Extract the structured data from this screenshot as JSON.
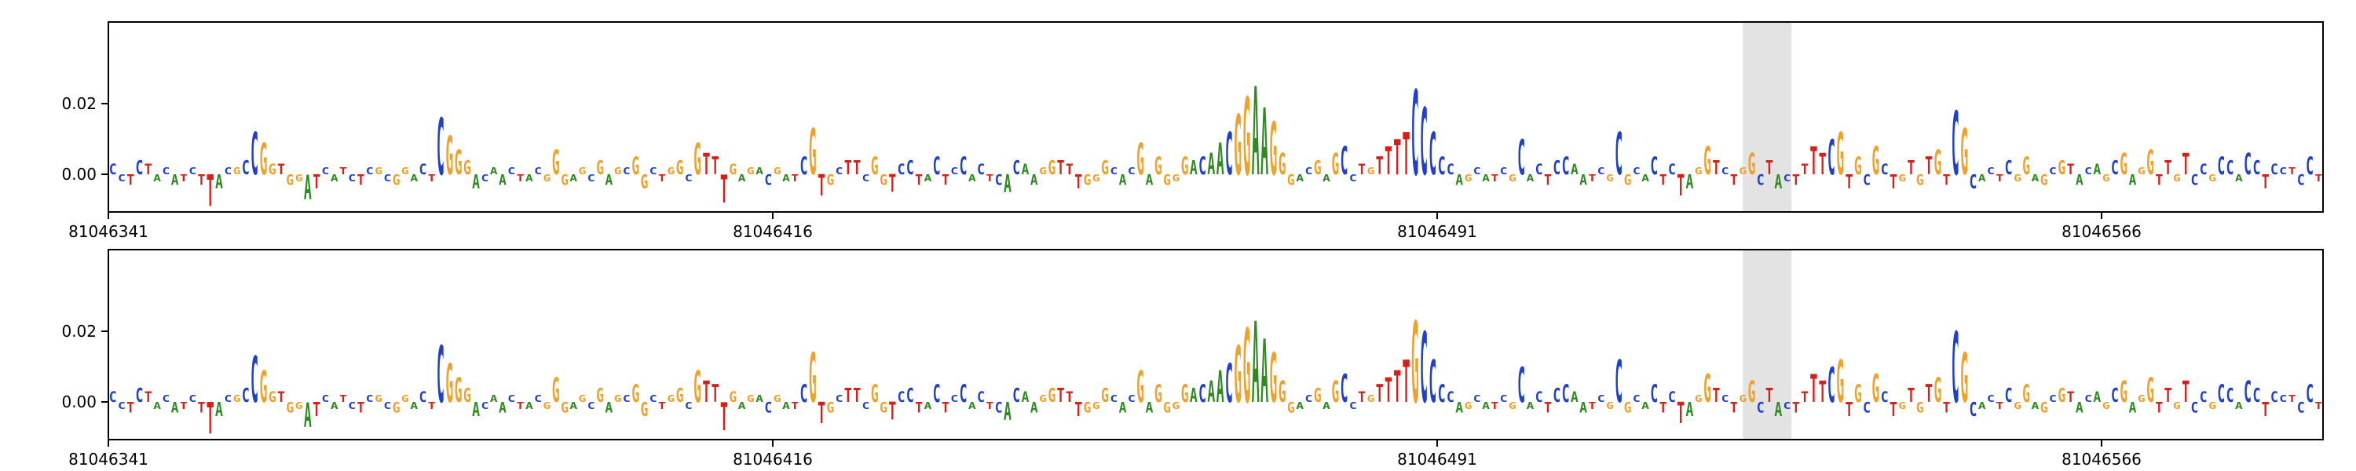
{
  "figure": {
    "background": "#ffffff",
    "type_hint": "genomic attribution sequence-logo tracks, two stacked panels"
  },
  "chart_data": {
    "type": "sequence_logo",
    "x_axis": {
      "start_coordinate": 81046341,
      "length_bp": 250,
      "tick_positions_bp": [
        0,
        75,
        150,
        225
      ],
      "tick_labels": [
        "81046341",
        "81046416",
        "81046491",
        "81046566"
      ]
    },
    "y_axis": {
      "tick_values": [
        0.0,
        0.02
      ],
      "tick_labels": [
        "0.00",
        "0.02"
      ],
      "ylim": [
        -0.0107,
        0.0431
      ]
    },
    "highlight_region": {
      "start_bp": 184.5,
      "end_bp": 190,
      "color": "#e3e3e3"
    },
    "colors": {
      "A": "#2e8b22",
      "C": "#2040cc",
      "G": "#f0a12c",
      "T": "#d91e18"
    },
    "panels": [
      {
        "name": "track-1",
        "letters": [
          [
            "C",
            0.003
          ],
          [
            "C",
            -0.002
          ],
          [
            "T",
            -0.003
          ],
          [
            "C",
            0.004
          ],
          [
            "T",
            0.003
          ],
          [
            "A",
            -0.002
          ],
          [
            "C",
            0.002
          ],
          [
            "A",
            -0.003
          ],
          [
            "T",
            -0.002
          ],
          [
            "C",
            0.002
          ],
          [
            "T",
            -0.003
          ],
          [
            "T",
            -0.009
          ],
          [
            "A",
            -0.004
          ],
          [
            "C",
            0.002
          ],
          [
            "G",
            0.002
          ],
          [
            "C",
            0.004
          ],
          [
            "C",
            0.012
          ],
          [
            "G",
            0.009
          ],
          [
            "G",
            0.003
          ],
          [
            "T",
            0.003
          ],
          [
            "G",
            -0.003
          ],
          [
            "G",
            -0.002
          ],
          [
            "A",
            -0.007
          ],
          [
            "T",
            -0.004
          ],
          [
            "C",
            0.002
          ],
          [
            "A",
            -0.002
          ],
          [
            "T",
            0.002
          ],
          [
            "C",
            -0.002
          ],
          [
            "T",
            -0.003
          ],
          [
            "C",
            0.002
          ],
          [
            "G",
            0.002
          ],
          [
            "C",
            -0.002
          ],
          [
            "G",
            -0.003
          ],
          [
            "G",
            0.002
          ],
          [
            "A",
            -0.002
          ],
          [
            "C",
            0.003
          ],
          [
            "T",
            -0.002
          ],
          [
            "C",
            0.016
          ],
          [
            "G",
            0.011
          ],
          [
            "G",
            0.007
          ],
          [
            "G",
            0.004
          ],
          [
            "A",
            -0.004
          ],
          [
            "C",
            -0.002
          ],
          [
            "A",
            0.002
          ],
          [
            "A",
            -0.003
          ],
          [
            "C",
            0.002
          ],
          [
            "T",
            -0.002
          ],
          [
            "A",
            -0.002
          ],
          [
            "C",
            0.002
          ],
          [
            "G",
            -0.002
          ],
          [
            "G",
            0.007
          ],
          [
            "G",
            -0.003
          ],
          [
            "A",
            -0.002
          ],
          [
            "G",
            0.002
          ],
          [
            "C",
            -0.002
          ],
          [
            "G",
            0.004
          ],
          [
            "A",
            -0.003
          ],
          [
            "G",
            0.002
          ],
          [
            "C",
            0.002
          ],
          [
            "G",
            0.005
          ],
          [
            "G",
            -0.004
          ],
          [
            "C",
            0.002
          ],
          [
            "T",
            -0.002
          ],
          [
            "G",
            0.002
          ],
          [
            "G",
            0.004
          ],
          [
            "C",
            -0.002
          ],
          [
            "G",
            0.009
          ],
          [
            "T",
            0.006
          ],
          [
            "T",
            0.005
          ],
          [
            "T",
            -0.008
          ],
          [
            "G",
            0.003
          ],
          [
            "A",
            -0.002
          ],
          [
            "G",
            0.002
          ],
          [
            "A",
            0.002
          ],
          [
            "C",
            -0.003
          ],
          [
            "G",
            0.002
          ],
          [
            "A",
            -0.002
          ],
          [
            "T",
            -0.002
          ],
          [
            "C",
            0.005
          ],
          [
            "G",
            0.013
          ],
          [
            "T",
            -0.006
          ],
          [
            "G",
            -0.003
          ],
          [
            "C",
            0.002
          ],
          [
            "T",
            0.004
          ],
          [
            "T",
            0.004
          ],
          [
            "C",
            -0.002
          ],
          [
            "G",
            0.005
          ],
          [
            "G",
            -0.003
          ],
          [
            "T",
            -0.005
          ],
          [
            "C",
            0.003
          ],
          [
            "C",
            0.004
          ],
          [
            "T",
            -0.003
          ],
          [
            "A",
            -0.002
          ],
          [
            "C",
            0.005
          ],
          [
            "T",
            -0.003
          ],
          [
            "C",
            0.002
          ],
          [
            "C",
            0.005
          ],
          [
            "A",
            -0.002
          ],
          [
            "C",
            0.003
          ],
          [
            "T",
            -0.002
          ],
          [
            "C",
            -0.003
          ],
          [
            "A",
            -0.005
          ],
          [
            "C",
            0.004
          ],
          [
            "A",
            0.003
          ],
          [
            "A",
            -0.003
          ],
          [
            "G",
            0.002
          ],
          [
            "G",
            0.004
          ],
          [
            "T",
            0.004
          ],
          [
            "T",
            0.003
          ],
          [
            "T",
            -0.004
          ],
          [
            "G",
            -0.003
          ],
          [
            "G",
            -0.002
          ],
          [
            "G",
            0.004
          ],
          [
            "C",
            0.002
          ],
          [
            "A",
            -0.003
          ],
          [
            "C",
            0.002
          ],
          [
            "G",
            0.009
          ],
          [
            "A",
            -0.003
          ],
          [
            "G",
            0.005
          ],
          [
            "G",
            -0.003
          ],
          [
            "G",
            -0.002
          ],
          [
            "G",
            0.005
          ],
          [
            "A",
            0.004
          ],
          [
            "C",
            0.005
          ],
          [
            "A",
            0.006
          ],
          [
            "A",
            0.009
          ],
          [
            "C",
            0.012
          ],
          [
            "G",
            0.017
          ],
          [
            "G",
            0.022
          ],
          [
            "A",
            0.025
          ],
          [
            "A",
            0.019
          ],
          [
            "G",
            0.015
          ],
          [
            "G",
            0.006
          ],
          [
            "G",
            -0.003
          ],
          [
            "A",
            -0.002
          ],
          [
            "C",
            0.002
          ],
          [
            "G",
            0.004
          ],
          [
            "A",
            -0.002
          ],
          [
            "G",
            0.006
          ],
          [
            "C",
            0.008
          ],
          [
            "C",
            -0.002
          ],
          [
            "T",
            0.003
          ],
          [
            "G",
            0.002
          ],
          [
            "T",
            0.005
          ],
          [
            "T",
            0.008
          ],
          [
            "T",
            0.01
          ],
          [
            "T",
            0.012
          ],
          [
            "C",
            0.024
          ],
          [
            "C",
            0.019
          ],
          [
            "C",
            0.012
          ],
          [
            "C",
            0.005
          ],
          [
            "C",
            0.003
          ],
          [
            "A",
            -0.003
          ],
          [
            "G",
            -0.002
          ],
          [
            "C",
            0.002
          ],
          [
            "A",
            -0.002
          ],
          [
            "T",
            -0.002
          ],
          [
            "C",
            0.002
          ],
          [
            "G",
            -0.002
          ],
          [
            "C",
            0.01
          ],
          [
            "A",
            -0.002
          ],
          [
            "C",
            0.003
          ],
          [
            "T",
            -0.003
          ],
          [
            "C",
            0.004
          ],
          [
            "C",
            0.005
          ],
          [
            "A",
            0.003
          ],
          [
            "A",
            -0.003
          ],
          [
            "T",
            -0.002
          ],
          [
            "C",
            0.002
          ],
          [
            "G",
            -0.002
          ],
          [
            "C",
            0.012
          ],
          [
            "G",
            -0.003
          ],
          [
            "C",
            0.002
          ],
          [
            "A",
            -0.002
          ],
          [
            "C",
            0.005
          ],
          [
            "T",
            -0.003
          ],
          [
            "C",
            0.003
          ],
          [
            "T",
            -0.006
          ],
          [
            "A",
            -0.004
          ],
          [
            "G",
            0.002
          ],
          [
            "G",
            0.008
          ],
          [
            "T",
            0.004
          ],
          [
            "C",
            0.002
          ],
          [
            "T",
            -0.003
          ],
          [
            "G",
            0.002
          ],
          [
            "G",
            0.006
          ],
          [
            "C",
            -0.003
          ],
          [
            "T",
            0.004
          ],
          [
            "A",
            -0.004
          ],
          [
            "C",
            -0.002
          ],
          [
            "T",
            -0.003
          ],
          [
            "T",
            0.003
          ],
          [
            "T",
            0.008
          ],
          [
            "T",
            0.006
          ],
          [
            "C",
            0.01
          ],
          [
            "G",
            0.012
          ],
          [
            "T",
            -0.004
          ],
          [
            "G",
            0.005
          ],
          [
            "C",
            -0.003
          ],
          [
            "G",
            0.008
          ],
          [
            "C",
            0.003
          ],
          [
            "T",
            -0.004
          ],
          [
            "G",
            -0.002
          ],
          [
            "T",
            0.004
          ],
          [
            "G",
            -0.003
          ],
          [
            "T",
            0.005
          ],
          [
            "G",
            0.007
          ],
          [
            "T",
            -0.003
          ],
          [
            "C",
            0.018
          ],
          [
            "G",
            0.013
          ],
          [
            "C",
            -0.004
          ],
          [
            "A",
            -0.002
          ],
          [
            "C",
            0.002
          ],
          [
            "T",
            -0.002
          ],
          [
            "C",
            0.004
          ],
          [
            "G",
            -0.002
          ],
          [
            "G",
            0.005
          ],
          [
            "A",
            -0.002
          ],
          [
            "G",
            -0.003
          ],
          [
            "C",
            0.002
          ],
          [
            "G",
            0.004
          ],
          [
            "T",
            0.003
          ],
          [
            "A",
            -0.003
          ],
          [
            "C",
            0.002
          ],
          [
            "A",
            0.003
          ],
          [
            "G",
            -0.002
          ],
          [
            "C",
            0.004
          ],
          [
            "G",
            0.006
          ],
          [
            "A",
            -0.003
          ],
          [
            "G",
            0.002
          ],
          [
            "G",
            0.007
          ],
          [
            "T",
            -0.003
          ],
          [
            "T",
            0.004
          ],
          [
            "G",
            -0.002
          ],
          [
            "T",
            0.006
          ],
          [
            "C",
            -0.003
          ],
          [
            "C",
            0.003
          ],
          [
            "G",
            -0.002
          ],
          [
            "C",
            0.005
          ],
          [
            "C",
            0.004
          ],
          [
            "A",
            -0.002
          ],
          [
            "C",
            0.006
          ],
          [
            "C",
            0.004
          ],
          [
            "T",
            -0.004
          ],
          [
            "C",
            0.003
          ],
          [
            "C",
            0.002
          ],
          [
            "T",
            0.002
          ],
          [
            "C",
            -0.003
          ],
          [
            "C",
            0.005
          ],
          [
            "T",
            -0.002
          ]
        ]
      },
      {
        "name": "track-2",
        "inherits": "track-1",
        "overrides": {
          "16": [
            "C",
            0.013
          ],
          "79": [
            "G",
            0.014
          ],
          "126": [
            "C",
            0.011
          ],
          "127": [
            "G",
            0.016
          ],
          "128": [
            "G",
            0.021
          ],
          "129": [
            "A",
            0.023
          ],
          "130": [
            "A",
            0.018
          ],
          "131": [
            "G",
            0.014
          ],
          "144": [
            "T",
            0.007
          ],
          "145": [
            "T",
            0.009
          ],
          "146": [
            "T",
            0.012
          ],
          "147": [
            "G",
            0.023
          ],
          "148": [
            "C",
            0.02
          ],
          "149": [
            "C",
            0.012
          ],
          "208": [
            "C",
            0.02
          ],
          "209": [
            "G",
            0.014
          ]
        }
      }
    ]
  }
}
